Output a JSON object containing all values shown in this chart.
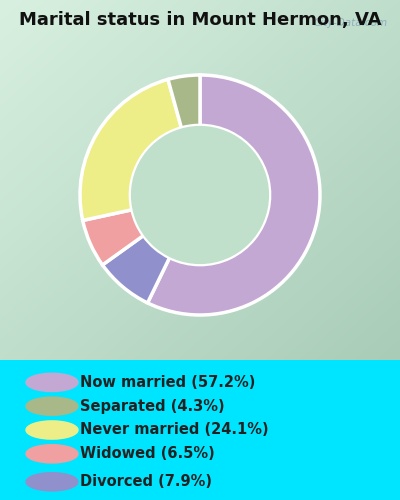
{
  "title": "Marital status in Mount Hermon, VA",
  "segments": [
    {
      "label": "Now married (57.2%)",
      "value": 57.2,
      "color": "#C4A8D4"
    },
    {
      "label": "Separated (4.3%)",
      "value": 4.3,
      "color": "#A8B888"
    },
    {
      "label": "Never married (24.1%)",
      "value": 24.1,
      "color": "#EEEE88"
    },
    {
      "label": "Widowed (6.5%)",
      "value": 6.5,
      "color": "#F0A0A0"
    },
    {
      "label": "Divorced (7.9%)",
      "value": 7.9,
      "color": "#9090CC"
    }
  ],
  "outer_bg": "#00E5FF",
  "chart_bg_tl": "#C8E8D0",
  "chart_bg_br": "#A8D8B8",
  "legend_bg": "#00E5FF",
  "title_fontsize": 13,
  "legend_fontsize": 10.5,
  "watermark": "City-Data.com",
  "donut_order": [
    0,
    4,
    3,
    2,
    1
  ],
  "donut_width": 0.42,
  "startangle": 90,
  "center_color": "#C0E0CC"
}
